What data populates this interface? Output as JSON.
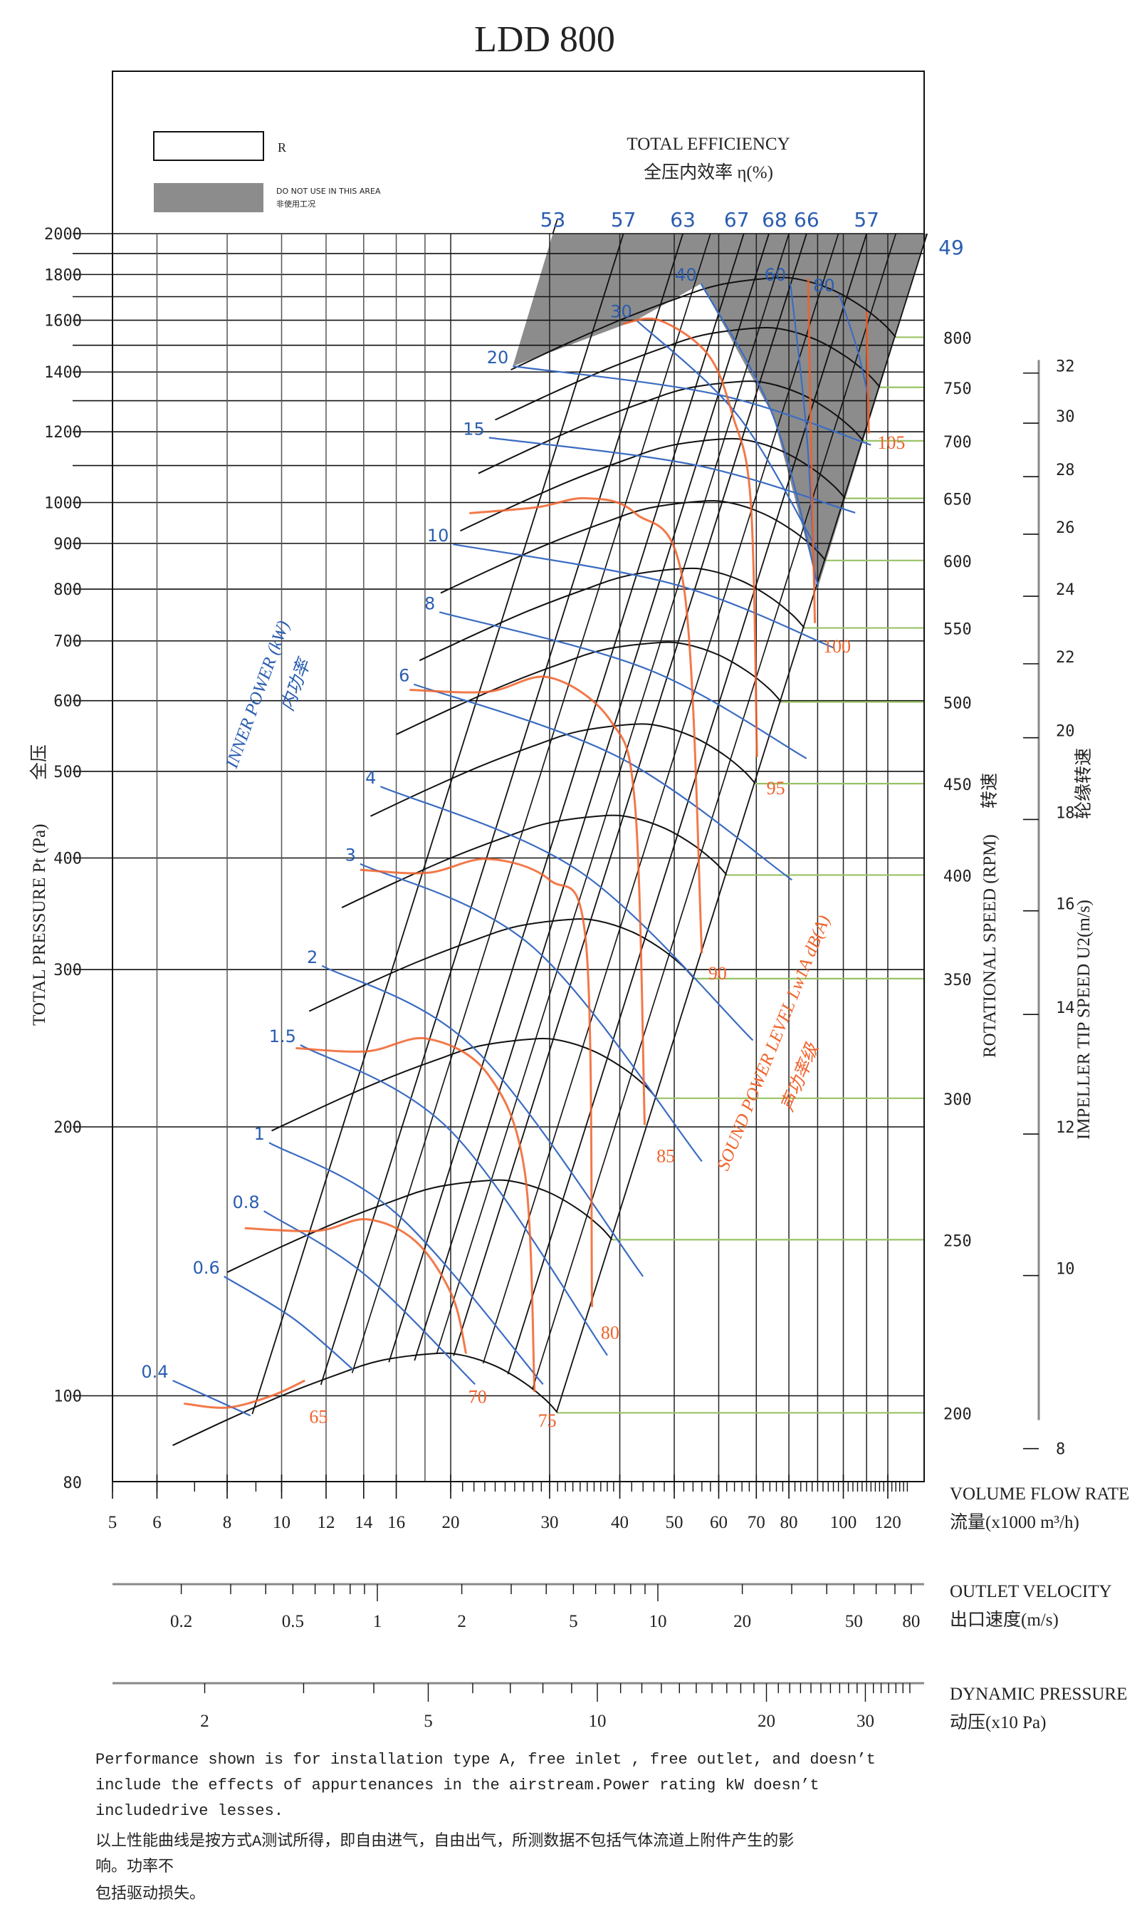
{
  "chart_data": {
    "type": "line",
    "title": "LDD 800",
    "legend": {
      "items": [
        {
          "label": "R",
          "swatch": "#ffffff"
        },
        {
          "label": "DO NOT USE IN THIS AREA",
          "label_cn": "非使用工况",
          "swatch": "#8c8c8c"
        }
      ],
      "placement": "top-left"
    },
    "efficiency": {
      "title": "TOTAL EFFICIENCY",
      "title_cn": "全压内效率  η(%)",
      "rays": [
        {
          "label": "53",
          "q_at_2000": 30.4
        },
        {
          "label": "57",
          "q_at_2000": 40.6
        },
        {
          "label": "63",
          "q_at_2000": 51.8
        },
        {
          "label": "67",
          "q_at_2000": 66.5
        },
        {
          "label": "68",
          "q_at_2000": 73.7
        },
        {
          "label": "66",
          "q_at_2000": 86.0
        },
        {
          "label": "57",
          "q_at_2000": 110.0
        },
        {
          "label": "49",
          "q_at_2000": 141.0
        }
      ],
      "extra_rays_q_at_2000": [
        58.0,
        80.0,
        98.0,
        124.0
      ]
    },
    "x_axis": {
      "label": "VOLUME FLOW RATE",
      "label_cn": "流量(x1000 m³/h)",
      "scale": "log",
      "range": [
        5,
        140
      ],
      "ticks": [
        5,
        6,
        8,
        10,
        12,
        14,
        16,
        20,
        30,
        40,
        50,
        60,
        70,
        80,
        100,
        120
      ],
      "grid": [
        6,
        8,
        10,
        12,
        14,
        16,
        18,
        20,
        30,
        40,
        50,
        60,
        70,
        80,
        90,
        100,
        110,
        120
      ]
    },
    "y_axis": {
      "label": "TOTAL PRESSURE Pt (Pa)",
      "label_cn": "全压",
      "scale": "log",
      "range": [
        80,
        2000
      ],
      "ticks": [
        2000,
        1800,
        1600,
        1400,
        1200,
        1000,
        900,
        800,
        700,
        600,
        500,
        400,
        300,
        200,
        100,
        80
      ],
      "grid": [
        2000,
        1900,
        1800,
        1700,
        1600,
        1500,
        1400,
        1300,
        1200,
        1100,
        1000,
        900,
        800,
        700,
        600,
        500,
        400,
        300,
        200,
        100
      ]
    },
    "rotational_speed": {
      "label": "ROTATIONAL SPEED (RPM)",
      "label_cn": "转速",
      "speeds": [
        200,
        250,
        300,
        350,
        400,
        450,
        500,
        550,
        600,
        650,
        700,
        750,
        800
      ],
      "base_rpm": 200,
      "base_curve": [
        [
          6.4,
          88
        ],
        [
          8,
          94
        ],
        [
          10,
          100
        ],
        [
          12.5,
          105.5
        ],
        [
          15,
          109.5
        ],
        [
          18.7,
          111.5
        ],
        [
          21,
          111
        ],
        [
          24,
          108
        ],
        [
          27,
          103.5
        ],
        [
          29.5,
          99
        ],
        [
          31,
          95.7
        ]
      ]
    },
    "tip_speed": {
      "label": "IMPELLER TIP SPEED U2(m/s)",
      "label_cn": "轮缘转速",
      "ticks": [
        8,
        10,
        12,
        14,
        16,
        18,
        20,
        22,
        24,
        26,
        28,
        30,
        32
      ],
      "u2_at_base_rpm": 8.378
    },
    "inner_power": {
      "label": "INNER POWER (kW)",
      "label_cn": "内功率",
      "series": [
        {
          "name": "0.4",
          "points": [
            [
              6.4,
              104
            ],
            [
              8.8,
              95
            ]
          ]
        },
        {
          "name": "0.6",
          "points": [
            [
              7.9,
              136
            ],
            [
              10.5,
              122
            ],
            [
              13.4,
              107
            ]
          ]
        },
        {
          "name": "0.8",
          "points": [
            [
              9.3,
              161
            ],
            [
              14,
              137
            ],
            [
              22.1,
              103
            ]
          ]
        },
        {
          "name": "1",
          "points": [
            [
              9.5,
              192
            ],
            [
              16,
              160
            ],
            [
              29.2,
              103
            ]
          ]
        },
        {
          "name": "1.5",
          "points": [
            [
              10.8,
              247
            ],
            [
              20,
              198
            ],
            [
              38,
              111
            ]
          ]
        },
        {
          "name": "2",
          "points": [
            [
              11.8,
              303
            ],
            [
              22,
              245
            ],
            [
              44,
              136
            ]
          ]
        },
        {
          "name": "3",
          "points": [
            [
              13.8,
              394
            ],
            [
              28,
              318
            ],
            [
              56,
              183
            ]
          ]
        },
        {
          "name": "4",
          "points": [
            [
              15,
              481
            ],
            [
              34,
              386
            ],
            [
              69,
              250
            ]
          ]
        },
        {
          "name": "6",
          "points": [
            [
              17.2,
              626
            ],
            [
              40,
              518
            ],
            [
              81,
              378
            ]
          ]
        },
        {
          "name": "8",
          "points": [
            [
              19.1,
              754
            ],
            [
              45,
              650
            ],
            [
              86,
              517
            ]
          ]
        },
        {
          "name": "10",
          "points": [
            [
              20.2,
              898
            ],
            [
              50,
              810
            ],
            [
              96,
              688
            ]
          ]
        },
        {
          "name": "15",
          "points": [
            [
              23.4,
              1182
            ],
            [
              55,
              1100
            ],
            [
              105,
              974
            ]
          ]
        },
        {
          "name": "20",
          "points": [
            [
              25.8,
              1421
            ],
            [
              60,
              1320
            ],
            [
              112,
              1160
            ]
          ]
        },
        {
          "name": "30",
          "points": [
            [
              42.8,
              1600
            ],
            [
              65,
              1250
            ],
            [
              90,
              884
            ]
          ]
        },
        {
          "name": "40",
          "points": [
            [
              55.8,
              1758
            ],
            [
              75,
              1250
            ],
            [
              90.2,
              805
            ]
          ]
        },
        {
          "name": "60",
          "points": [
            [
              80.5,
              1758
            ],
            [
              86,
              1200
            ],
            [
              89,
              808
            ]
          ]
        },
        {
          "name": "80",
          "points": [
            [
              98.3,
              1711
            ],
            [
              106,
              1480
            ],
            [
              111,
              1304
            ]
          ]
        }
      ]
    },
    "sound_power": {
      "label": "SOUND POWER LEVEL Lw1A dB(A)",
      "label_cn": "声功率级",
      "series": [
        {
          "name": "65",
          "points": [
            [
              6.7,
              98
            ],
            [
              8,
              97
            ],
            [
              9.6,
              100
            ],
            [
              11,
              104
            ]
          ],
          "label_at": [
            11.2,
            95
          ]
        },
        {
          "name": "70",
          "points": [
            [
              8.6,
              154
            ],
            [
              11.6,
              153
            ],
            [
              14.2,
              157.6
            ],
            [
              17.3,
              149
            ],
            [
              20.1,
              129.6
            ],
            [
              21.3,
              111.5
            ]
          ],
          "label_at": [
            21.5,
            100
          ]
        },
        {
          "name": "75",
          "points": [
            [
              10.6,
              245
            ],
            [
              14.2,
              243
            ],
            [
              18.2,
              251
            ],
            [
              23.3,
              229
            ],
            [
              27.1,
              178
            ],
            [
              28.2,
              101
            ]
          ],
          "label_at": [
            28.6,
            94
          ]
        },
        {
          "name": "80",
          "points": [
            [
              13.8,
              388
            ],
            [
              18.2,
              385
            ],
            [
              23.3,
              399
            ],
            [
              30,
              378
            ],
            [
              34.8,
              323
            ],
            [
              35.7,
              125.7
            ]
          ],
          "label_at": [
            37,
            118
          ]
        },
        {
          "name": "85",
          "points": [
            [
              16.9,
              617
            ],
            [
              23.3,
              614
            ],
            [
              30,
              637
            ],
            [
              38.5,
              570
            ],
            [
              42.6,
              457
            ],
            [
              44.3,
              201
            ]
          ],
          "label_at": [
            46.5,
            186
          ]
        },
        {
          "name": "90",
          "points": [
            [
              21.6,
              973
            ],
            [
              28.5,
              988
            ],
            [
              34.8,
              1011
            ],
            [
              42.6,
              973
            ],
            [
              52,
              805
            ],
            [
              56,
              313
            ]
          ],
          "label_at": [
            57.5,
            298
          ]
        },
        {
          "name": "95",
          "points": [
            [
              40.5,
              1585
            ],
            [
              47,
              1600
            ],
            [
              57.4,
              1465
            ],
            [
              63.5,
              1253
            ],
            [
              68.4,
              1004
            ],
            [
              70.2,
              519
            ]
          ],
          "label_at": [
            73,
            480
          ]
        },
        {
          "name": "100",
          "points": [
            [
              86.6,
              1782
            ],
            [
              87.5,
              1200
            ],
            [
              89,
              733
            ]
          ],
          "label_at": [
            92,
            692
          ]
        },
        {
          "name": "105",
          "points": [
            [
              110,
              1636
            ],
            [
              110.5,
              1400
            ],
            [
              111,
              1195
            ]
          ],
          "label_at": [
            115,
            1170
          ]
        }
      ]
    },
    "forbidden_region": {
      "label": "DO NOT USE IN THIS AREA",
      "boundary": [
        [
          30.4,
          2000
        ],
        [
          141,
          2000
        ],
        [
          90.2,
          805
        ],
        [
          75,
          1250
        ],
        [
          55.8,
          1758
        ],
        [
          42.8,
          1600
        ],
        [
          25.8,
          1421
        ]
      ]
    },
    "outlet_velocity": {
      "label": "OUTLET VELOCITY",
      "label_cn": "出口速度(m/s)",
      "scale": "log",
      "tick_labels": [
        0.2,
        0.5,
        1,
        2,
        5,
        10,
        20,
        50,
        80
      ],
      "minor_ticks": [
        0.2,
        0.3,
        0.4,
        0.5,
        0.6,
        0.7,
        0.8,
        0.9,
        1,
        2,
        3,
        4,
        5,
        6,
        7,
        8,
        9,
        10,
        20,
        30,
        40,
        50,
        60,
        70,
        80
      ]
    },
    "dynamic_pressure": {
      "label": "DYNAMIC PRESSURE",
      "label_cn": "动压(x10 Pa)",
      "scale": "log",
      "tick_labels": [
        2,
        5,
        10,
        20,
        30
      ],
      "minor_ticks": [
        2,
        3,
        4,
        5,
        6,
        7,
        8,
        9,
        10,
        11,
        12,
        13,
        14,
        15,
        16,
        17,
        18,
        19,
        20,
        21,
        22,
        23,
        24,
        25,
        26,
        27,
        28,
        29,
        30,
        31,
        32,
        33,
        34,
        35,
        36
      ]
    },
    "colors": {
      "efficiency": "#2a5db0",
      "power": "#3b6cc2",
      "noise": "#f0622a",
      "grid": "#000000",
      "speed_tick": "#9ac266",
      "forbidden": "#8c8c8c"
    }
  },
  "footnote": {
    "lines": [
      "Performance shown is for installation type A, free inlet , free outlet, and doesn’t",
      "include the effects of appurtenances in the airstream.Power rating kW doesn’t",
      "includedrive lesses.",
      "以上性能曲线是按方式A测试所得，即自由进气，自由出气，所测数据不包括气体流道上附件产生的影",
      "响。功率不",
      "包括驱动损失。"
    ]
  }
}
